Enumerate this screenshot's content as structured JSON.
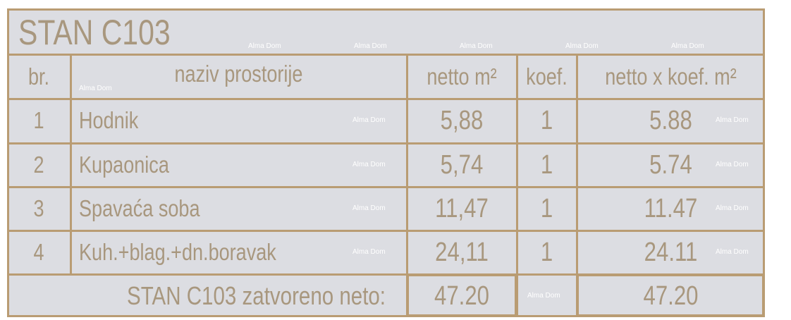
{
  "title": "STAN C103",
  "headers": {
    "no": "br.",
    "room": "naziv prostorije",
    "net": "netto m²",
    "coef": "koef.",
    "net_coef": "netto x koef. m²"
  },
  "rows": [
    {
      "no": "1",
      "room": "Hodnik",
      "net": "5,88",
      "coef": "1",
      "net_coef": "5.88"
    },
    {
      "no": "2",
      "room": "Kupaonica",
      "net": "5,74",
      "coef": "1",
      "net_coef": "5.74"
    },
    {
      "no": "3",
      "room": "Spavaća soba",
      "net": "11,47",
      "coef": "1",
      "net_coef": "11.47"
    },
    {
      "no": "4",
      "room": "Kuh.+blag.+dn.boravak",
      "net": "24,11",
      "coef": "1",
      "net_coef": "24.11"
    }
  ],
  "total": {
    "label": "STAN C103 zatvoreno neto:",
    "net": "47.20",
    "net_coef": "47.20"
  },
  "watermark": "Alma Dom",
  "colors": {
    "background": "#dcdde2",
    "lines": "#b99c73",
    "text": "#a8977e"
  }
}
